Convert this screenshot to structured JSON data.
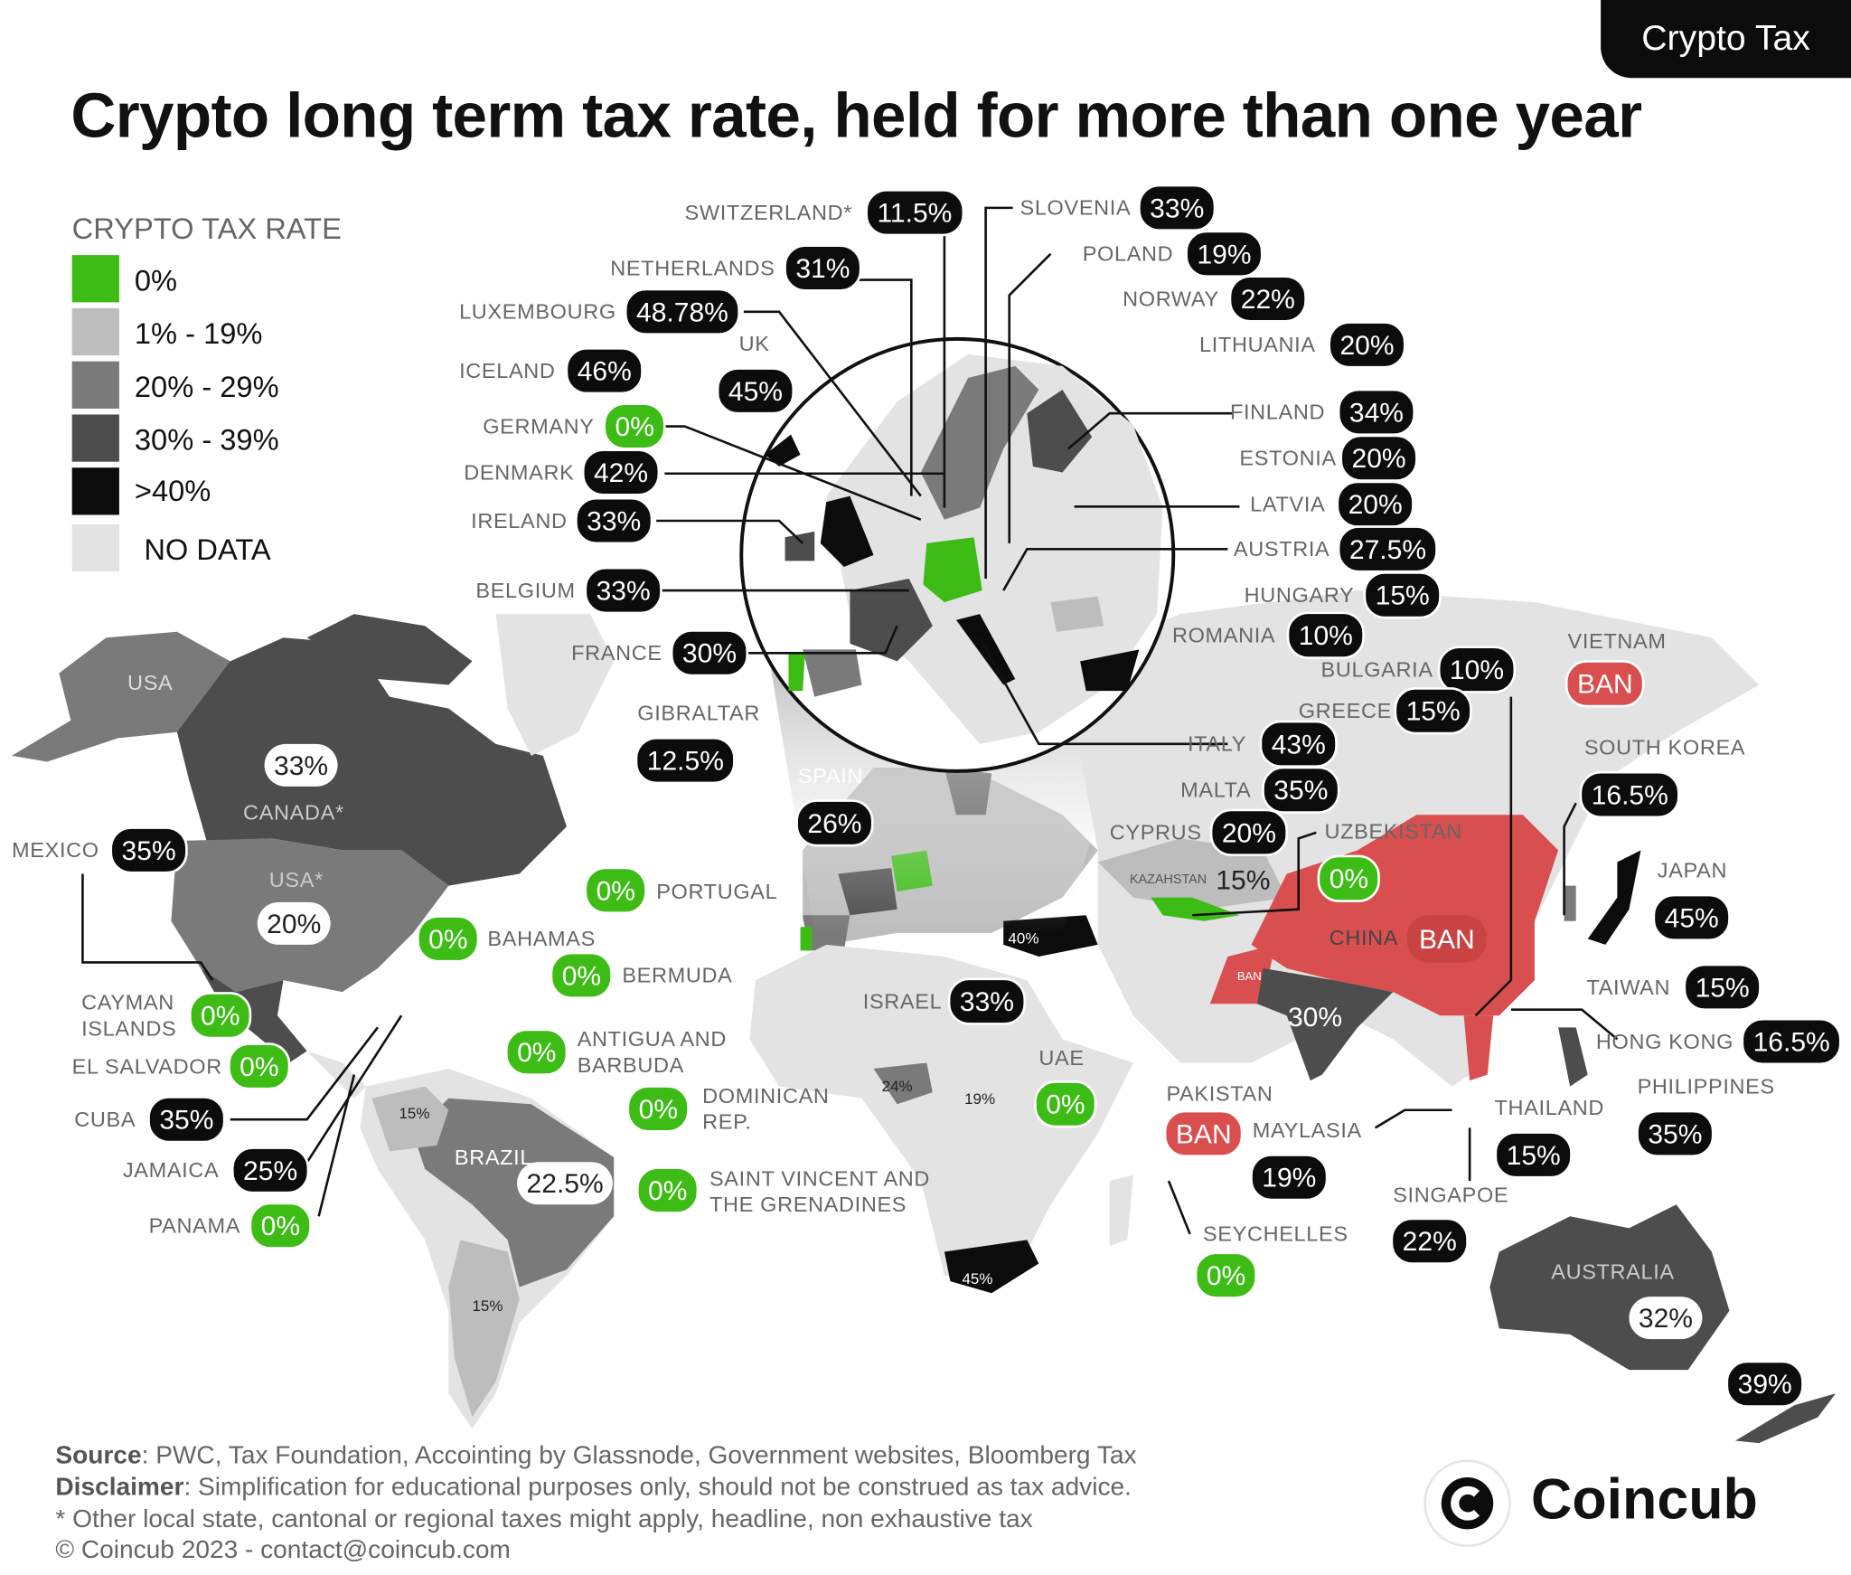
{
  "tag": "Crypto Tax",
  "title": "Crypto long term tax rate, held for more than one year",
  "legend": {
    "heading": "CRYPTO TAX RATE",
    "items": [
      {
        "label": "0%",
        "color": "#3cbc14"
      },
      {
        "label": "1% - 19%",
        "color": "#bdbdbd"
      },
      {
        "label": "20% - 29%",
        "color": "#7a7a7a"
      },
      {
        "label": "30% - 39%",
        "color": "#4d4d4d"
      },
      {
        "label": ">40%",
        "color": "#0c0c0c"
      },
      {
        "label": "NO DATA",
        "color": "#e3e3e3"
      }
    ]
  },
  "europe": {
    "switzerland": {
      "name": "SWITZERLAND*",
      "rate": "11.5%"
    },
    "slovenia": {
      "name": "SLOVENIA",
      "rate": "33%"
    },
    "netherlands": {
      "name": "NETHERLANDS",
      "rate": "31%"
    },
    "poland": {
      "name": "POLAND",
      "rate": "19%"
    },
    "luxembourg": {
      "name": "LUXEMBOURG",
      "rate": "48.78%"
    },
    "norway": {
      "name": "NORWAY",
      "rate": "22%"
    },
    "uk": {
      "name": "UK",
      "rate": "45%"
    },
    "lithuania": {
      "name": "LITHUANIA",
      "rate": "20%"
    },
    "iceland": {
      "name": "ICELAND",
      "rate": "46%"
    },
    "finland": {
      "name": "FINLAND",
      "rate": "34%"
    },
    "germany": {
      "name": "GERMANY",
      "rate": "0%"
    },
    "estonia": {
      "name": "ESTONIA",
      "rate": "20%"
    },
    "denmark": {
      "name": "DENMARK",
      "rate": "42%"
    },
    "latvia": {
      "name": "LATVIA",
      "rate": "20%"
    },
    "ireland": {
      "name": "IRELAND",
      "rate": "33%"
    },
    "austria": {
      "name": "AUSTRIA",
      "rate": "27.5%"
    },
    "belgium": {
      "name": "BELGIUM",
      "rate": "33%"
    },
    "hungary": {
      "name": "HUNGARY",
      "rate": "15%"
    },
    "romania": {
      "name": "ROMANIA",
      "rate": "10%"
    },
    "france": {
      "name": "FRANCE",
      "rate": "30%"
    },
    "bulgaria": {
      "name": "BULGARIA",
      "rate": "10%"
    },
    "gibraltar": {
      "name": "GIBRALTAR",
      "rate": "12.5%"
    },
    "greece": {
      "name": "GREECE",
      "rate": "15%"
    },
    "italy": {
      "name": "ITALY",
      "rate": "43%"
    },
    "spain": {
      "name": "SPAIN",
      "rate": "26%"
    },
    "malta": {
      "name": "MALTA",
      "rate": "35%"
    },
    "portugal": {
      "name": "PORTUGAL",
      "rate": "0%"
    },
    "cyprus": {
      "name": "CYPRUS",
      "rate": "20%"
    }
  },
  "americas": {
    "usa_top": "USA",
    "canada": {
      "name": "CANADA*",
      "rate": "33%"
    },
    "usa": {
      "name": "USA*",
      "rate": "20%"
    },
    "mexico": {
      "name": "MEXICO",
      "rate": "35%"
    },
    "bahamas": {
      "name": "BAHAMAS",
      "rate": "0%"
    },
    "bermuda": {
      "name": "BERMUDA",
      "rate": "0%"
    },
    "cayman": {
      "name1": "CAYMAN",
      "name2": "ISLANDS",
      "rate": "0%"
    },
    "antigua": {
      "name1": "ANTIGUA AND",
      "name2": "BARBUDA",
      "rate": "0%"
    },
    "el_salvador": {
      "name": "EL SALVADOR",
      "rate": "0%"
    },
    "dominican": {
      "name1": "DOMINICAN",
      "name2": "REP.",
      "rate": "0%"
    },
    "cuba": {
      "name": "CUBA",
      "rate": "35%"
    },
    "jamaica": {
      "name": "JAMAICA",
      "rate": "25%"
    },
    "brazil": {
      "name": "BRAZIL",
      "rate": "22.5%"
    },
    "svg": {
      "name1": "SAINT VINCENT AND",
      "name2": "THE GRENADINES",
      "rate": "0%"
    },
    "panama": {
      "name": "PANAMA",
      "rate": "0%"
    },
    "colombia_rate": "15%",
    "argentina_rate": "15%"
  },
  "asia": {
    "vietnam": {
      "name": "VIETNAM",
      "rate": "BAN"
    },
    "south_korea": {
      "name": "SOUTH KOREA",
      "rate": "16.5%"
    },
    "uzbekistan": {
      "name": "UZBEKISTAN",
      "rate": "0%"
    },
    "japan": {
      "name": "JAPAN",
      "rate": "45%"
    },
    "kazakhstan": {
      "name": "KAZAHSTAN",
      "rate": "15%"
    },
    "china": {
      "name": "CHINA",
      "rate": "BAN"
    },
    "israel": {
      "name": "ISRAEL",
      "rate": "33%"
    },
    "taiwan": {
      "name": "TAIWAN",
      "rate": "15%"
    },
    "india_rate": "30%",
    "hong_kong": {
      "name": "HONG KONG",
      "rate": "16.5%"
    },
    "uae": {
      "name": "UAE",
      "rate": "0%"
    },
    "philippines": {
      "name": "PHILIPPINES",
      "rate": "35%"
    },
    "pakistan": {
      "name": "PAKISTAN",
      "rate": "BAN",
      "map_rate": "BAN"
    },
    "thailand": {
      "name": "THAILAND",
      "rate": "15%"
    },
    "malaysia": {
      "name": "MAYLASIA",
      "rate": "19%"
    },
    "singapore": {
      "name": "SINGAPOE",
      "rate": "22%"
    },
    "turkey_rate": "40%"
  },
  "africa": {
    "seychelles": {
      "name": "SEYCHELLES",
      "rate": "0%"
    },
    "nigeria_rate": "24%",
    "kenya_rate": "19%",
    "south_africa_rate": "45%"
  },
  "oceania": {
    "australia": {
      "name": "AUSTRALIA",
      "rate": "32%"
    },
    "new_zealand_rate": "39%"
  },
  "footer": {
    "source_label": "Source",
    "source": ": PWC, Tax Foundation, Accointing by Glassnode, Government websites, Bloomberg Tax",
    "disclaimer_label": "Disclaimer",
    "disclaimer": ": Simplification for educational purposes only, should not be construed as tax advice.",
    "note": "* Other local state, cantonal or regional taxes might apply, headline, non exhaustive tax",
    "copyright": "© Coincub 2023 - contact@coincub.com"
  },
  "brand": {
    "name": "Coincub"
  }
}
